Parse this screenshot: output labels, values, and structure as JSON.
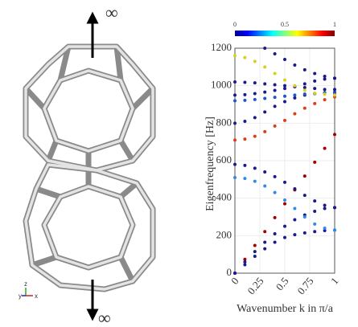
{
  "chart_data": {
    "type": "scatter",
    "ylabel": "Eigenfrequency [Hz]",
    "xlabel": "Wavenumber k in π/a",
    "annotations": [
      "∞",
      "∞"
    ],
    "triad": [
      "y",
      "z",
      "x"
    ],
    "colorbar_ticks": [
      0,
      0.5,
      1
    ],
    "x": [
      0,
      0.1,
      0.2,
      0.3,
      0.4,
      0.5,
      0.6,
      0.7,
      0.8,
      0.9,
      1
    ],
    "xlim": [
      0,
      1
    ],
    "xticks": [
      0,
      0.25,
      0.5,
      0.75,
      1
    ],
    "ylim": [
      0,
      1200
    ],
    "yticks": [
      0,
      200,
      400,
      600,
      800,
      1000,
      1200
    ],
    "grid": true,
    "series": [
      {
        "color": "#a50000",
        "values": [
          0,
          74,
          148,
          222,
          296,
          370,
          444,
          518,
          592,
          666,
          740
        ]
      },
      {
        "color": "#1a1a8c",
        "values": [
          0,
          45,
          90,
          130,
          165,
          190,
          205,
          215,
          222,
          227,
          230
        ]
      },
      {
        "color": "#1a1a8c",
        "values": [
          0,
          60,
          115,
          165,
          210,
          250,
          285,
          310,
          330,
          345,
          350
        ]
      },
      {
        "color": "#2e8bea",
        "values": [
          510,
          505,
          490,
          465,
          430,
          390,
          345,
          300,
          262,
          240,
          230
        ]
      },
      {
        "color": "#1a1a8c",
        "values": [
          580,
          575,
          560,
          540,
          515,
          485,
          450,
          415,
          385,
          362,
          350
        ]
      },
      {
        "color": "#d9401a",
        "values": [
          710,
          715,
          730,
          755,
          785,
          815,
          850,
          880,
          905,
          925,
          940
        ]
      },
      {
        "color": "#1a1a8c",
        "values": [
          800,
          810,
          830,
          860,
          890,
          915,
          935,
          950,
          958,
          962,
          965
        ]
      },
      {
        "color": "#2255cc",
        "values": [
          920,
          922,
          926,
          932,
          938,
          944,
          950,
          955,
          958,
          960,
          960
        ]
      },
      {
        "color": "#1a1a8c",
        "values": [
          950,
          952,
          958,
          966,
          975,
          985,
          995,
          1010,
          1025,
          1035,
          1040
        ]
      },
      {
        "color": "#1a1a8c",
        "values": [
          1020,
          1018,
          1015,
          1010,
          1005,
          1000,
          995,
          990,
          985,
          980,
          980
        ]
      },
      {
        "color": "#d8d020",
        "values": [
          1160,
          1150,
          1130,
          1100,
          1065,
          1030,
          1000,
          975,
          960,
          955,
          950
        ]
      },
      {
        "color": "#1a1a8c",
        "values": [
          null,
          null,
          null,
          1200,
          1170,
          1140,
          1110,
          1085,
          1065,
          1050,
          1040
        ]
      }
    ]
  }
}
